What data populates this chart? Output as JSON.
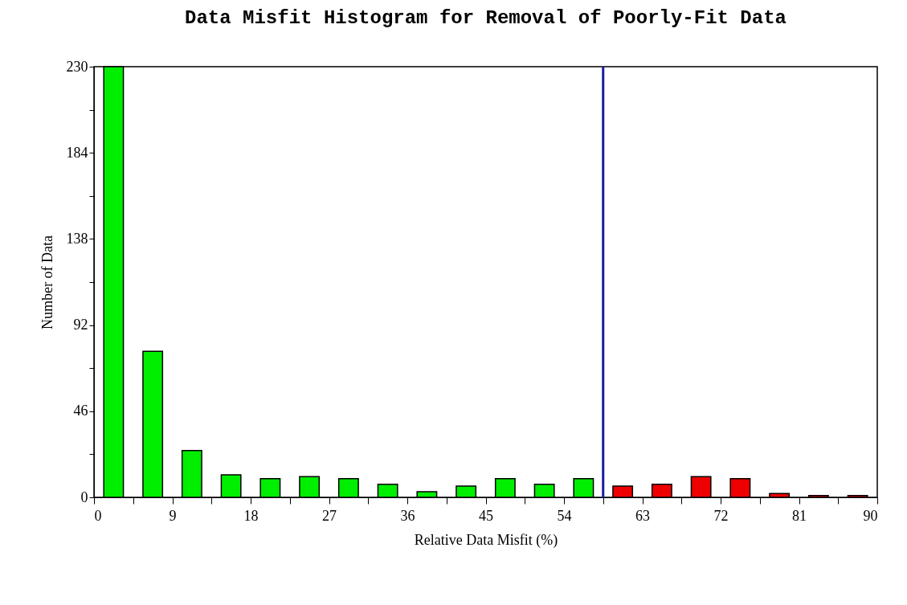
{
  "chart_data": {
    "type": "histogram",
    "title": "Data Misfit Histogram for Removal of Poorly-Fit Data",
    "xlabel": "Relative Data Misfit (%)",
    "ylabel": "Number of Data",
    "bins": [
      0,
      4.5,
      9,
      13.5,
      18,
      22.5,
      27,
      31.5,
      36,
      40.5,
      45,
      49.5,
      54,
      58.5,
      63,
      67.5,
      72,
      76.5,
      81,
      85.5,
      90
    ],
    "values": [
      230,
      78,
      25,
      12,
      10,
      11,
      10,
      7,
      3,
      6,
      10,
      7,
      10,
      6,
      7,
      11,
      10,
      2,
      1,
      1
    ],
    "colors": [
      "#00ee00",
      "#00ee00",
      "#00ee00",
      "#00ee00",
      "#00ee00",
      "#00ee00",
      "#00ee00",
      "#00ee00",
      "#00ee00",
      "#00ee00",
      "#00ee00",
      "#00ee00",
      "#00ee00",
      "#ee0000",
      "#ee0000",
      "#ee0000",
      "#ee0000",
      "#ee0000",
      "#ee0000",
      "#ee0000"
    ],
    "xlim": [
      0,
      90
    ],
    "ylim": [
      0,
      230
    ],
    "xticks": [
      0,
      {
        "value": 4.5,
        "label": null
      },
      9,
      {
        "value": 13.5,
        "label": null
      },
      18,
      {
        "value": 22.5,
        "label": null
      },
      27,
      {
        "value": 31.5,
        "label": null
      },
      36,
      {
        "value": 40.5,
        "label": null
      },
      45,
      {
        "value": 49.5,
        "label": null
      },
      54,
      {
        "value": 58.5,
        "label": null
      },
      63,
      {
        "value": 67.5,
        "label": null
      },
      72,
      {
        "value": 76.5,
        "label": null
      },
      81,
      {
        "value": 85.5,
        "label": null
      },
      90
    ],
    "yticks": [
      0,
      {
        "value": 23,
        "label": null
      },
      46,
      {
        "value": 69,
        "label": null
      },
      92,
      {
        "value": 115,
        "label": null
      },
      138,
      {
        "value": 161,
        "label": null
      },
      184,
      {
        "value": 207,
        "label": null
      },
      230
    ],
    "ref_lines": [
      {
        "axis": "x",
        "value": 58.5,
        "color": "#1a1aa6"
      }
    ],
    "grid": false
  }
}
